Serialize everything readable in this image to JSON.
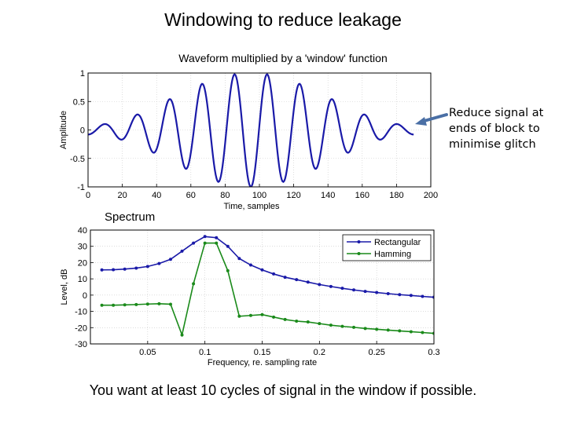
{
  "slide": {
    "title": "Windowing to reduce leakage",
    "waveform_title": "Waveform multiplied by a 'window' function",
    "spectrum_label": "Spectrum",
    "annotation": "Reduce signal at ends of block to minimise glitch",
    "footer": "You want at least 10 cycles of signal in the window if possible."
  },
  "colors": {
    "waveform": "#1a1aa8",
    "rectangular": "#1a1aa8",
    "hamming": "#1a8a1a",
    "arrow": "#4a6fa5",
    "grid": "#c8c8c8"
  },
  "chart_data": [
    {
      "type": "line",
      "title": "Waveform multiplied by a 'window' function",
      "xlabel": "Time, samples",
      "ylabel": "Amplitude",
      "xlim": [
        0,
        200
      ],
      "ylim": [
        -1,
        1
      ],
      "xticks": [
        0,
        20,
        40,
        60,
        80,
        100,
        120,
        140,
        160,
        180,
        200
      ],
      "yticks": [
        -1,
        -0.5,
        0,
        0.5,
        1
      ],
      "ytick_labels": [
        "-1",
        "-0.5",
        "0",
        "0.5",
        "1"
      ],
      "grid": true,
      "series": [
        {
          "sample_range": [
            0,
            190
          ],
          "cycle_period_samples": 19,
          "peak_amplitude": 1.0,
          "envelope": "hamming",
          "envelope_floor": 0.08
        }
      ]
    },
    {
      "type": "line",
      "xlabel": "Frequency, re. sampling rate",
      "ylabel": "Level, dB",
      "xlim": [
        0,
        0.3
      ],
      "ylim": [
        -30,
        40
      ],
      "xticks": [
        0.05,
        0.1,
        0.15,
        0.2,
        0.25,
        0.3
      ],
      "xtick_labels": [
        "0.05",
        "0.1",
        "0.15",
        "0.2",
        "0.25",
        "0.3"
      ],
      "yticks": [
        -30,
        -20,
        -10,
        0,
        10,
        20,
        30,
        40
      ],
      "ytick_labels": [
        "-30",
        "-20",
        "-10",
        "0",
        "10",
        "20",
        "30",
        "40"
      ],
      "grid": true,
      "legend_position": "top-right",
      "x": [
        0.01,
        0.02,
        0.03,
        0.04,
        0.05,
        0.06,
        0.07,
        0.08,
        0.09,
        0.1,
        0.11,
        0.12,
        0.13,
        0.14,
        0.15,
        0.16,
        0.17,
        0.18,
        0.19,
        0.2,
        0.21,
        0.22,
        0.23,
        0.24,
        0.25,
        0.26,
        0.27,
        0.28,
        0.29,
        0.3
      ],
      "series": [
        {
          "name": "Rectangular",
          "values": [
            15.5,
            15.6,
            16,
            16.6,
            17.6,
            19.4,
            22,
            27,
            32,
            36,
            35.3,
            30,
            22.5,
            18.5,
            15.5,
            13,
            11,
            9.5,
            8,
            6.5,
            5.3,
            4.2,
            3.2,
            2.3,
            1.6,
            0.9,
            0.3,
            -0.2,
            -0.8,
            -1.3
          ]
        },
        {
          "name": "Hamming",
          "values": [
            -6.2,
            -6.2,
            -6,
            -5.8,
            -5.5,
            -5.3,
            -5.6,
            -24.5,
            7,
            32,
            32,
            15,
            -13,
            -12.5,
            -12,
            -13.5,
            -15,
            -16,
            -16.5,
            -17.5,
            -18.5,
            -19.2,
            -19.8,
            -20.5,
            -21,
            -21.5,
            -22,
            -22.5,
            -23,
            -23.5
          ]
        }
      ]
    }
  ]
}
